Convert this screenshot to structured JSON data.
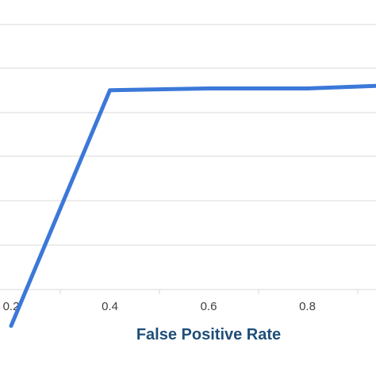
{
  "chart_data": {
    "type": "line",
    "title": "",
    "xlabel": "False Positive Rate",
    "ylabel": "",
    "x_ticks": [
      "0.2",
      "0.4",
      "0.6",
      "0.8"
    ],
    "x_tick_values": [
      0.2,
      0.4,
      0.6,
      0.8
    ],
    "xlim": [
      0.2,
      1.0
    ],
    "grid": true,
    "colors": {
      "line": "#3b78d8",
      "grid": "#d9d9d9",
      "tick_text": "#404040",
      "axis_title": "#1f4e79"
    },
    "series": [
      {
        "x": [
          0.2,
          0.4,
          0.6,
          0.8,
          1.0
        ],
        "y": [
          0.3,
          0.94,
          0.945,
          0.945,
          0.955
        ]
      }
    ]
  }
}
